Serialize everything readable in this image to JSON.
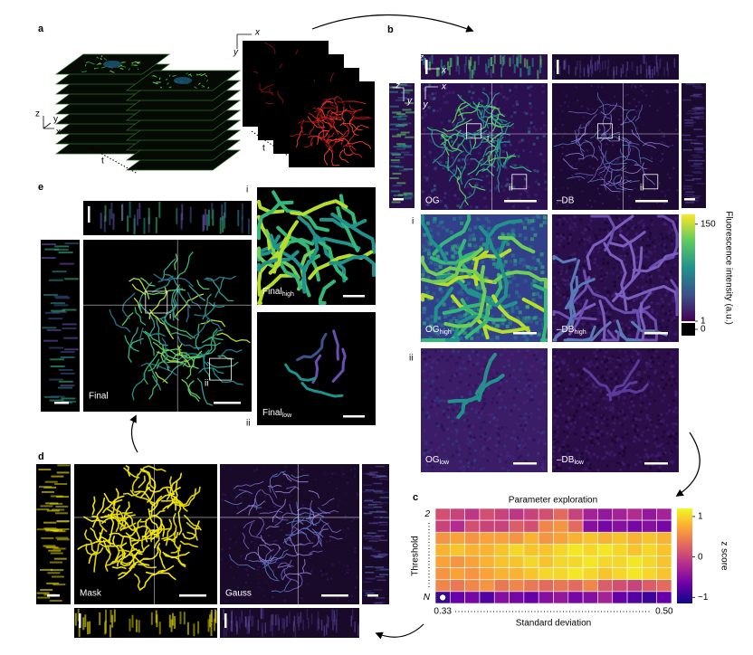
{
  "figure": {
    "a": {
      "label": "a",
      "stack_axes": {
        "z": "z",
        "y": "y",
        "x": "x"
      },
      "stack_time": "t",
      "image_axes": {
        "x": "x",
        "y": "y"
      },
      "image_time": "t"
    },
    "b": {
      "label": "b",
      "xz_axes": {
        "z": "z",
        "x": "x"
      },
      "yz_axes": {
        "z": "z",
        "y": "y"
      },
      "xy_axes": {
        "x": "x",
        "y": "y"
      },
      "og": "OG",
      "db": "–DB",
      "og_rois": [
        "i",
        "ii"
      ],
      "db_rois": [
        "i",
        "ii"
      ],
      "row_i": "i",
      "row_ii": "ii",
      "og_high": {
        "main": "OG",
        "sub": "high"
      },
      "db_high": {
        "main": "–DB",
        "sub": "high"
      },
      "og_low": {
        "main": "OG",
        "sub": "low"
      },
      "db_low": {
        "main": "–DB",
        "sub": "low"
      },
      "colorbar": {
        "title": "Fluorescence intensity (a.u.)",
        "lim": [
          1,
          165
        ],
        "ticks": [
          150,
          1,
          0
        ]
      }
    },
    "d": {
      "label": "d",
      "mask": "Mask",
      "gauss": "Gauss"
    },
    "e": {
      "label": "e",
      "final": "Final",
      "rois": [
        "i",
        "ii"
      ],
      "row_i": "i",
      "row_ii": "ii",
      "final_high": {
        "main": "Final",
        "sub": "high"
      },
      "final_low": {
        "main": "Final",
        "sub": "low"
      }
    }
  },
  "chart_data": {
    "type": "heatmap",
    "panel_label": "c",
    "title": "Parameter exploration",
    "x_label": "Standard deviation",
    "y_label": "Threshold",
    "x_categories": [
      "0.33",
      null,
      null,
      null,
      null,
      null,
      null,
      null,
      null,
      null,
      null,
      null,
      null,
      null,
      null,
      "0.50"
    ],
    "y_categories": [
      "2",
      null,
      null,
      null,
      null,
      null,
      null,
      "N"
    ],
    "values": [
      [
        0.1,
        0.0,
        -0.1,
        0.1,
        0.0,
        -0.1,
        0.0,
        0.1,
        0.3,
        0.0,
        -0.3,
        -0.4,
        -0.3,
        -0.2,
        -0.4,
        -0.3
      ],
      [
        0.0,
        -0.2,
        0.1,
        0.0,
        0.0,
        0.2,
        0.1,
        0.5,
        0.6,
        0.3,
        -0.5,
        -0.6,
        -0.5,
        -0.6,
        -0.5,
        -0.6
      ],
      [
        0.6,
        0.7,
        0.6,
        0.7,
        0.7,
        0.6,
        0.8,
        0.6,
        0.7,
        0.8,
        0.9,
        0.8,
        0.9,
        0.8,
        0.9,
        0.8
      ],
      [
        0.8,
        0.9,
        0.8,
        0.8,
        0.9,
        1.0,
        0.9,
        0.9,
        1.0,
        1.1,
        1.0,
        1.1,
        1.0,
        0.9,
        1.0,
        0.9
      ],
      [
        0.7,
        0.6,
        0.7,
        0.8,
        0.9,
        0.9,
        1.0,
        0.9,
        1.0,
        1.0,
        1.1,
        1.0,
        1.0,
        1.1,
        1.0,
        0.9
      ],
      [
        0.6,
        0.7,
        0.6,
        0.7,
        0.8,
        0.8,
        0.9,
        1.0,
        1.0,
        1.1,
        1.0,
        0.9,
        1.0,
        1.1,
        1.0,
        0.9
      ],
      [
        0.5,
        0.4,
        0.5,
        0.6,
        0.4,
        0.5,
        0.4,
        0.3,
        0.4,
        0.3,
        0.5,
        0.2,
        0.1,
        0.0,
        0.2,
        0.3
      ],
      [
        -0.9,
        -0.7,
        -0.6,
        -0.8,
        -0.5,
        -0.6,
        -0.7,
        -0.5,
        -0.4,
        -0.6,
        -0.5,
        -0.3,
        -0.7,
        -0.8,
        -0.9,
        -0.7
      ]
    ],
    "colormap": "plasma",
    "colorbar": {
      "label": "z score",
      "lim": [
        -1.15,
        1.2
      ],
      "ticks": [
        1,
        0,
        {
          "value": -1,
          "label": "−1"
        }
      ]
    }
  }
}
